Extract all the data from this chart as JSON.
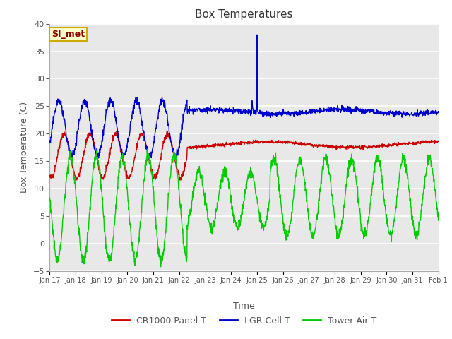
{
  "title": "Box Temperatures",
  "xlabel": "Time",
  "ylabel": "Box Temperature (C)",
  "ylim": [
    -5,
    40
  ],
  "yticks": [
    -5,
    0,
    5,
    10,
    15,
    20,
    25,
    30,
    35,
    40
  ],
  "xtick_labels": [
    "Jan 17",
    "Jan 18",
    "Jan 19",
    "Jan 20",
    "Jan 21",
    "Jan 22",
    "Jan 23",
    "Jan 24",
    "Jan 25",
    "Jan 26",
    "Jan 27",
    "Jan 28",
    "Jan 29",
    "Jan 30",
    "Jan 31",
    "Feb 1"
  ],
  "legend_entries": [
    "CR1000 Panel T",
    "LGR Cell T",
    "Tower Air T"
  ],
  "legend_colors": [
    "#cc0000",
    "#0000cc",
    "#00cc00"
  ],
  "line_colors": [
    "#cc0000",
    "#0000cc",
    "#00cc00"
  ],
  "annotation_text": "SI_met",
  "annotation_bg": "#ffffcc",
  "annotation_border": "#ccaa00",
  "fig_bg": "#ffffff",
  "plot_bg": "#e8e8e8",
  "grid_color": "#ffffff",
  "title_color": "#333333",
  "axis_label_color": "#555555",
  "tick_color": "#555555"
}
